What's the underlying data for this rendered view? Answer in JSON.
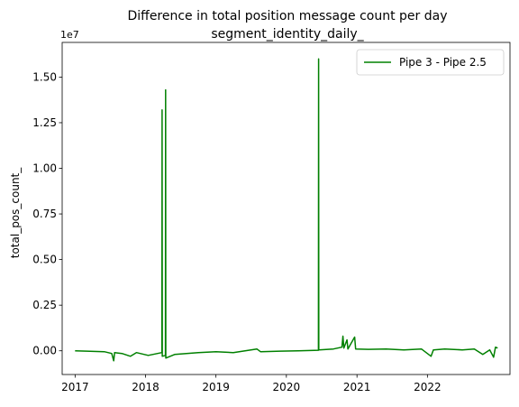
{
  "chart_data": {
    "type": "line",
    "title": "Difference in total position message count per day",
    "subtitle": "segment_identity_daily_",
    "xlabel": "",
    "ylabel": "total_pos_count_",
    "y_offset_text": "1e7",
    "xlim": [
      "2016-10-26",
      "2023-03-05"
    ],
    "ylim": [
      -1300000,
      16900000
    ],
    "x_ticks": [
      {
        "value": "2017-01-01",
        "label": "2017"
      },
      {
        "value": "2018-01-01",
        "label": "2018"
      },
      {
        "value": "2019-01-01",
        "label": "2019"
      },
      {
        "value": "2020-01-01",
        "label": "2020"
      },
      {
        "value": "2021-01-01",
        "label": "2021"
      },
      {
        "value": "2022-01-01",
        "label": "2022"
      }
    ],
    "y_ticks": [
      {
        "value": 0,
        "label": "0.00"
      },
      {
        "value": 2500000,
        "label": "0.25"
      },
      {
        "value": 5000000,
        "label": "0.50"
      },
      {
        "value": 7500000,
        "label": "0.75"
      },
      {
        "value": 10000000,
        "label": "1.00"
      },
      {
        "value": 12500000,
        "label": "1.25"
      },
      {
        "value": 15000000,
        "label": "1.50"
      }
    ],
    "grid": false,
    "legend_position": "top-right",
    "series": [
      {
        "name": "Pipe 3 - Pipe 2.5",
        "color": "#008000",
        "points": [
          [
            "2017-01-01",
            0
          ],
          [
            "2017-03-01",
            -20000
          ],
          [
            "2017-06-01",
            -50000
          ],
          [
            "2017-07-10",
            -150000
          ],
          [
            "2017-07-20",
            -550000
          ],
          [
            "2017-07-25",
            -100000
          ],
          [
            "2017-09-01",
            -150000
          ],
          [
            "2017-10-15",
            -300000
          ],
          [
            "2017-11-15",
            -100000
          ],
          [
            "2018-01-15",
            -250000
          ],
          [
            "2018-03-27",
            -100000
          ],
          [
            "2018-03-28",
            13200000
          ],
          [
            "2018-03-29",
            -300000
          ],
          [
            "2018-04-14",
            -250000
          ],
          [
            "2018-04-15",
            14300000
          ],
          [
            "2018-04-16",
            -400000
          ],
          [
            "2018-06-01",
            -200000
          ],
          [
            "2018-08-01",
            -150000
          ],
          [
            "2018-10-01",
            -100000
          ],
          [
            "2019-01-01",
            -50000
          ],
          [
            "2019-04-01",
            -100000
          ],
          [
            "2019-08-01",
            100000
          ],
          [
            "2019-08-20",
            -50000
          ],
          [
            "2019-12-01",
            -20000
          ],
          [
            "2020-03-01",
            0
          ],
          [
            "2020-06-15",
            30000
          ],
          [
            "2020-06-16",
            16000000
          ],
          [
            "2020-06-17",
            50000
          ],
          [
            "2020-09-01",
            100000
          ],
          [
            "2020-10-15",
            200000
          ],
          [
            "2020-10-20",
            800000
          ],
          [
            "2020-10-25",
            150000
          ],
          [
            "2020-11-10",
            600000
          ],
          [
            "2020-11-15",
            100000
          ],
          [
            "2020-12-20",
            750000
          ],
          [
            "2020-12-25",
            100000
          ],
          [
            "2021-03-01",
            80000
          ],
          [
            "2021-06-01",
            100000
          ],
          [
            "2021-09-01",
            50000
          ],
          [
            "2021-12-01",
            100000
          ],
          [
            "2022-01-20",
            -300000
          ],
          [
            "2022-02-01",
            50000
          ],
          [
            "2022-04-01",
            100000
          ],
          [
            "2022-07-01",
            50000
          ],
          [
            "2022-09-01",
            100000
          ],
          [
            "2022-10-15",
            -200000
          ],
          [
            "2022-11-20",
            50000
          ],
          [
            "2022-12-10",
            -350000
          ],
          [
            "2022-12-20",
            200000
          ],
          [
            "2022-12-31",
            150000
          ]
        ]
      }
    ]
  }
}
